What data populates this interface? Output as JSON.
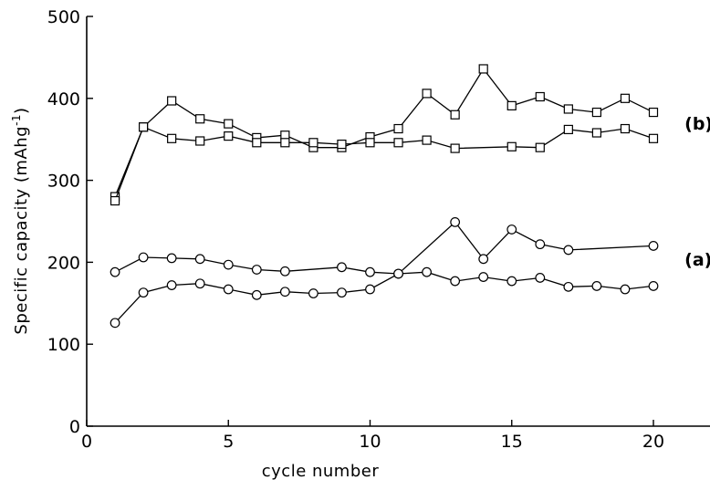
{
  "chart_data": {
    "type": "line",
    "xlabel": "cycle number",
    "ylabel": "Specific capacity (mAhg",
    "ylabel_sup": "-1",
    "ylabel_close": ")",
    "xlim": [
      0,
      22
    ],
    "ylim": [
      0,
      500
    ],
    "xticks": [
      0,
      5,
      10,
      15,
      20
    ],
    "yticks": [
      0,
      100,
      200,
      300,
      400,
      500
    ],
    "grid": false,
    "series": [
      {
        "group": "(b)",
        "marker": "square",
        "x": [
          1,
          2,
          3,
          4,
          5,
          6,
          7,
          8,
          9,
          10,
          11,
          12,
          13,
          14,
          15,
          16,
          17,
          18,
          19,
          20
        ],
        "y": [
          280,
          365,
          397,
          375,
          369,
          352,
          355,
          340,
          340,
          353,
          363,
          406,
          380,
          436,
          391,
          402,
          387,
          383,
          400,
          383
        ]
      },
      {
        "group": "(b)",
        "marker": "square",
        "x": [
          1,
          2,
          3,
          4,
          5,
          6,
          7,
          8,
          9,
          10,
          11,
          12,
          13,
          15,
          16,
          17,
          18,
          19,
          20
        ],
        "y": [
          275,
          365,
          351,
          348,
          354,
          346,
          346,
          346,
          344,
          346,
          346,
          349,
          339,
          341,
          340,
          362,
          358,
          363,
          351
        ]
      },
      {
        "group": "(a)",
        "marker": "circle",
        "x": [
          1,
          2,
          3,
          4,
          5,
          6,
          7,
          9,
          10,
          11,
          13,
          14,
          15,
          16,
          17,
          20
        ],
        "y": [
          188,
          206,
          205,
          204,
          197,
          191,
          189,
          194,
          188,
          186,
          249,
          204,
          240,
          222,
          215,
          220
        ]
      },
      {
        "group": "(a)",
        "marker": "circle",
        "x": [
          1,
          2,
          3,
          4,
          5,
          6,
          7,
          8,
          9,
          10,
          11,
          12,
          13,
          14,
          15,
          16,
          17,
          18,
          19,
          20
        ],
        "y": [
          126,
          163,
          172,
          174,
          167,
          160,
          164,
          162,
          163,
          167,
          186,
          188,
          177,
          182,
          177,
          181,
          170,
          171,
          167,
          171
        ]
      }
    ],
    "annotations": [
      {
        "text": "(b)",
        "x": 21.1,
        "y": 362
      },
      {
        "text": "(a)",
        "x": 21.1,
        "y": 196
      }
    ]
  }
}
